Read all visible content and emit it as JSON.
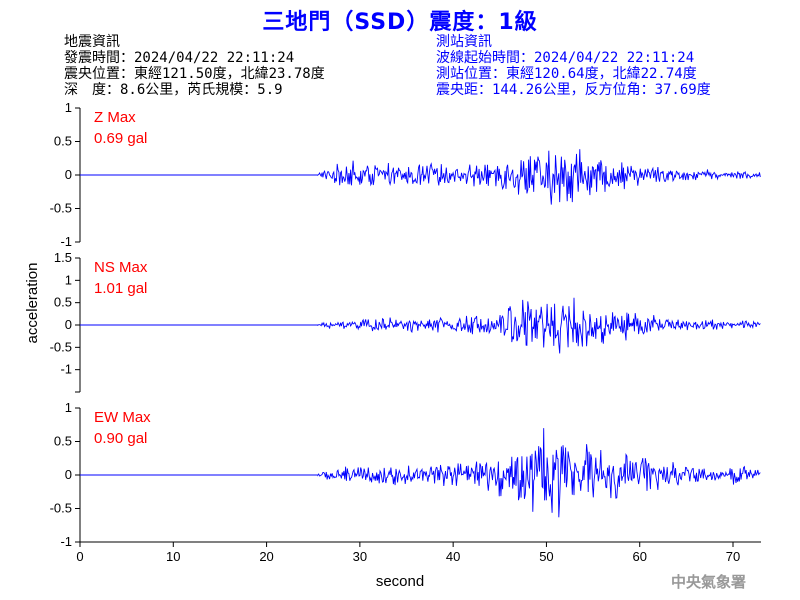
{
  "title": "三地門（SSD）震度：1級",
  "quake_info": {
    "heading": "地震資訊",
    "time": "發震時間：2024/04/22 22:11:24",
    "epicenter": "震央位置：東經121.50度，北緯23.78度",
    "depth_magnitude": "深　度：8.6公里，芮氏規模：5.9"
  },
  "station_info": {
    "heading": "測站資訊",
    "wave_start": "波線起始時間：2024/04/22 22:11:24",
    "station_location": "測站位置：東經120.64度，北緯22.74度",
    "distance_azimuth": "震央距：144.26公里，反方位角：37.69度"
  },
  "agency": "中央氣象署",
  "colors": {
    "trace": "#0000ff",
    "max_label": "#ff0000",
    "title": "#0000ff",
    "station_info": "#0000ff"
  },
  "chart_data": {
    "type": "line",
    "xlabel": "second",
    "ylabel": "acceleration",
    "xlim": [
      0,
      73
    ],
    "xticks": [
      0,
      10,
      20,
      30,
      40,
      50,
      60,
      70
    ],
    "signal_onset_s": 25.5,
    "panels": [
      {
        "name": "Z",
        "max_label": "Z Max",
        "max_value": "0.69 gal",
        "ylim": [
          -1,
          1
        ],
        "yticks": [
          -1,
          -0.5,
          0,
          0.5,
          1
        ],
        "ytick_labels": [
          "-1",
          "-0.5",
          "0",
          "0.5",
          "1"
        ],
        "envelope": [
          [
            25.5,
            0.05
          ],
          [
            27,
            0.15
          ],
          [
            29,
            0.25
          ],
          [
            31,
            0.2
          ],
          [
            35,
            0.2
          ],
          [
            40,
            0.18
          ],
          [
            45,
            0.25
          ],
          [
            47,
            0.35
          ],
          [
            50,
            0.5
          ],
          [
            50.5,
            0.69
          ],
          [
            52,
            0.45
          ],
          [
            53.5,
            0.55
          ],
          [
            55,
            0.35
          ],
          [
            58,
            0.25
          ],
          [
            62,
            0.15
          ],
          [
            66,
            0.1
          ],
          [
            70,
            0.08
          ],
          [
            73,
            0.06
          ]
        ]
      },
      {
        "name": "NS",
        "max_label": "NS Max",
        "max_value": "1.01 gal",
        "ylim": [
          -1.5,
          1.5
        ],
        "yticks": [
          -1.5,
          -1,
          -0.5,
          0,
          0.5,
          1,
          1.5
        ],
        "ytick_labels": [
          "",
          "-1",
          "-0.5",
          "0",
          "0.5",
          "1",
          "1.5"
        ],
        "envelope": [
          [
            25.5,
            0.03
          ],
          [
            27,
            0.1
          ],
          [
            30,
            0.15
          ],
          [
            35,
            0.2
          ],
          [
            40,
            0.2
          ],
          [
            45,
            0.35
          ],
          [
            47,
            0.65
          ],
          [
            49,
            0.75
          ],
          [
            51,
            1.01
          ],
          [
            53,
            0.7
          ],
          [
            55,
            0.55
          ],
          [
            58,
            0.4
          ],
          [
            62,
            0.25
          ],
          [
            66,
            0.15
          ],
          [
            70,
            0.15
          ],
          [
            73,
            0.1
          ]
        ]
      },
      {
        "name": "EW",
        "max_label": "EW Max",
        "max_value": "0.90 gal",
        "ylim": [
          -1,
          1
        ],
        "yticks": [
          -1,
          -0.5,
          0,
          0.5,
          1
        ],
        "ytick_labels": [
          "-1",
          "-0.5",
          "0",
          "0.5",
          "1"
        ],
        "envelope": [
          [
            25.5,
            0.04
          ],
          [
            27,
            0.12
          ],
          [
            30,
            0.18
          ],
          [
            35,
            0.18
          ],
          [
            40,
            0.2
          ],
          [
            43,
            0.25
          ],
          [
            46,
            0.45
          ],
          [
            48,
            0.6
          ],
          [
            50,
            0.9
          ],
          [
            52,
            0.65
          ],
          [
            54,
            0.55
          ],
          [
            57,
            0.45
          ],
          [
            60,
            0.35
          ],
          [
            63,
            0.25
          ],
          [
            66,
            0.15
          ],
          [
            69,
            0.08
          ],
          [
            70,
            0.2
          ],
          [
            72,
            0.15
          ],
          [
            73,
            0.1
          ]
        ]
      }
    ]
  }
}
